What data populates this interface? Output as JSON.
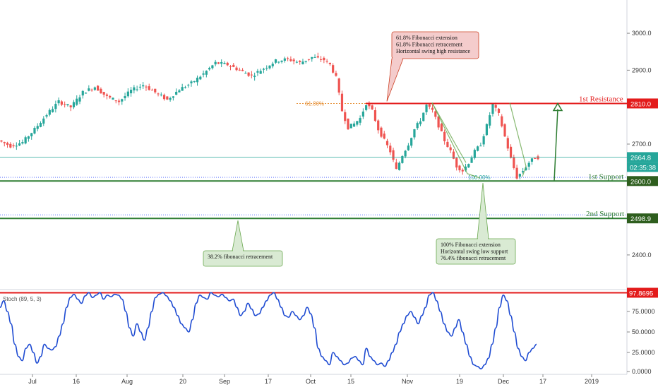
{
  "chart_data": [
    {
      "type": "candlestick",
      "title": "",
      "price_axis": {
        "range": [
          2310,
          3090
        ],
        "ticks": [
          3000.0,
          2900.0,
          2700.0,
          2400.0
        ],
        "tick_labels": [
          "3000.0",
          "2900.0",
          "2700.0",
          "2400.0"
        ]
      },
      "time_axis": {
        "labels": [
          "Jul",
          "16",
          "Aug",
          "20",
          "Sep",
          "17",
          "Oct",
          "15",
          "Nov",
          "19",
          "Dec",
          "17",
          "2019"
        ]
      },
      "price_path": [
        [
          0,
          2710
        ],
        [
          4,
          2695
        ],
        [
          8,
          2705
        ],
        [
          12,
          2740
        ],
        [
          16,
          2780
        ],
        [
          20,
          2815
        ],
        [
          24,
          2800
        ],
        [
          28,
          2840
        ],
        [
          32,
          2855
        ],
        [
          36,
          2828
        ],
        [
          40,
          2815
        ],
        [
          44,
          2845
        ],
        [
          48,
          2860
        ],
        [
          52,
          2840
        ],
        [
          56,
          2820
        ],
        [
          60,
          2848
        ],
        [
          64,
          2865
        ],
        [
          68,
          2890
        ],
        [
          72,
          2920
        ],
        [
          76,
          2915
        ],
        [
          80,
          2900
        ],
        [
          84,
          2885
        ],
        [
          88,
          2905
        ],
        [
          92,
          2925
        ],
        [
          96,
          2930
        ],
        [
          100,
          2920
        ],
        [
          104,
          2935
        ],
        [
          108,
          2928
        ],
        [
          110,
          2915
        ],
        [
          112,
          2880
        ],
        [
          114,
          2790
        ],
        [
          116,
          2745
        ],
        [
          118,
          2755
        ],
        [
          120,
          2770
        ],
        [
          122,
          2810
        ],
        [
          124,
          2790
        ],
        [
          126,
          2740
        ],
        [
          128,
          2710
        ],
        [
          130,
          2680
        ],
        [
          132,
          2630
        ],
        [
          134,
          2670
        ],
        [
          136,
          2700
        ],
        [
          138,
          2740
        ],
        [
          140,
          2765
        ],
        [
          142,
          2805
        ],
        [
          144,
          2790
        ],
        [
          146,
          2750
        ],
        [
          148,
          2710
        ],
        [
          150,
          2680
        ],
        [
          152,
          2640
        ],
        [
          154,
          2628
        ],
        [
          156,
          2650
        ],
        [
          158,
          2680
        ],
        [
          160,
          2700
        ],
        [
          162,
          2750
        ],
        [
          164,
          2808
        ],
        [
          166,
          2780
        ],
        [
          168,
          2720
        ],
        [
          170,
          2660
        ],
        [
          172,
          2610
        ],
        [
          174,
          2628
        ],
        [
          176,
          2650
        ],
        [
          178,
          2664
        ]
      ],
      "levels": [
        {
          "name": "1st Resistance",
          "value": 2810.0,
          "label": "2810.0",
          "color": "#e31b1b",
          "style": "solid"
        },
        {
          "name": "1st Support",
          "value": 2600.0,
          "label": "2600.0",
          "color": "#2e7d32",
          "style": "solid"
        },
        {
          "name": "2nd Support",
          "value": 2498.9,
          "label": "2498.9",
          "color": "#2e7d32",
          "style": "solid"
        },
        {
          "name": "current",
          "value": 2664.8,
          "label": "2664.8",
          "color": "#26a69a",
          "style": "thin"
        }
      ],
      "countdown": "02:35:38",
      "fib_markers": [
        {
          "label": "61.80%",
          "value": 2810.0
        },
        {
          "label": "100.00%",
          "value": 2610.0
        }
      ],
      "annotations": [
        {
          "lines": [
            "61.8% Fibonacci extension",
            "61.8% Fibonacci retracement",
            "Horizontal swing high resistance"
          ],
          "color": "#f4cccc"
        },
        {
          "lines": [
            "100% Fibonacci extension",
            "Horizontal swing low support",
            "76.4% fibonacci retracement"
          ],
          "color": "#d9ead3"
        },
        {
          "lines": [
            "38.2% fibonacci retracement"
          ],
          "color": "#d9ead3"
        }
      ],
      "target_arrow": {
        "from": 2600.0,
        "to": 2810.0,
        "color": "#2e7d32"
      }
    },
    {
      "type": "line",
      "title": "Stoch (89, 5, 3)",
      "ylim": [
        0,
        100
      ],
      "tick_labels": [
        "75.0000",
        "50.0000",
        "25.0000",
        "0.0000"
      ],
      "ticks": [
        75,
        50,
        25,
        0
      ],
      "level": {
        "value": 97.8695,
        "label": "97.8695",
        "color": "#e31b1b"
      },
      "series": [
        {
          "values": [
            80,
            88,
            75,
            60,
            35,
            20,
            15,
            30,
            35,
            25,
            12,
            20,
            35,
            30,
            28,
            32,
            45,
            60,
            80,
            92,
            96,
            90,
            85,
            94,
            98,
            92,
            95,
            98,
            90,
            95,
            93,
            96,
            95,
            90,
            75,
            55,
            45,
            60,
            50,
            40,
            55,
            75,
            92,
            96,
            98,
            94,
            88,
            80,
            70,
            60,
            55,
            50,
            65,
            85,
            95,
            92,
            90,
            98,
            95,
            93,
            96,
            92,
            88,
            90,
            80,
            70,
            75,
            85,
            78,
            70,
            72,
            80,
            88,
            95,
            98,
            90,
            80,
            70,
            68,
            75,
            70,
            65,
            70,
            80,
            72,
            55,
            30,
            20,
            15,
            10,
            25,
            20,
            15,
            10,
            12,
            18,
            20,
            15,
            10,
            30,
            20,
            15,
            10,
            12,
            8,
            15,
            25,
            35,
            50,
            60,
            70,
            75,
            68,
            60,
            70,
            80,
            95,
            98,
            88,
            75,
            60,
            50,
            45,
            55,
            65,
            50,
            35,
            20,
            10,
            8,
            5,
            10,
            18,
            35,
            55,
            80,
            95,
            88,
            70,
            50,
            30,
            20,
            15,
            25,
            30,
            35
          ]
        }
      ]
    }
  ]
}
